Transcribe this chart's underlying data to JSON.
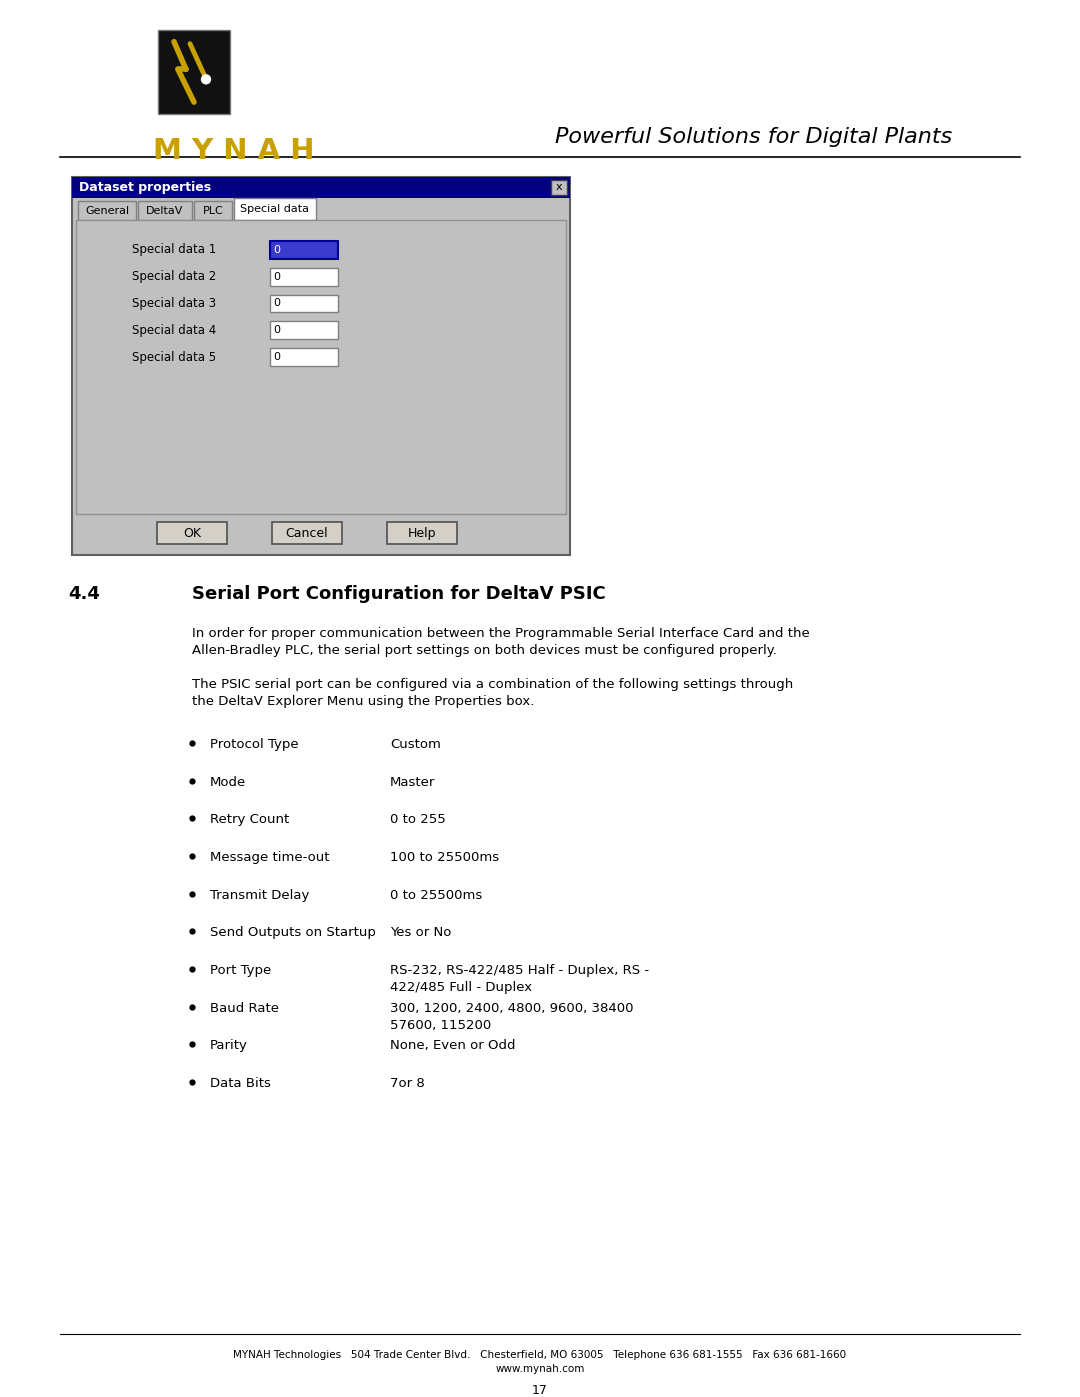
{
  "page_bg": "#ffffff",
  "header_tagline": "Powerful Solutions for Digital Plants",
  "dialog_title": "Dataset properties",
  "dialog_title_bg": "#000080",
  "dialog_title_fg": "#ffffff",
  "dialog_bg": "#c0c0c0",
  "dialog_tabs": [
    "General",
    "DeltaV",
    "PLC",
    "Special data"
  ],
  "dialog_active_tab": "Special data",
  "dialog_fields": [
    "Special data 1",
    "Special data 2",
    "Special data 3",
    "Special data 4",
    "Special data 5"
  ],
  "dialog_values": [
    "0",
    "0",
    "0",
    "0",
    "0"
  ],
  "dialog_buttons": [
    "OK",
    "Cancel",
    "Help"
  ],
  "section_number": "4.4",
  "section_title": "Serial Port Configuration for DeltaV PSIC",
  "para1_line1": "In order for proper communication between the Programmable Serial Interface Card and the",
  "para1_line2": "Allen-Bradley PLC, the serial port settings on both devices must be configured properly.",
  "para2_line1": "The PSIC serial port can be configured via a combination of the following settings through",
  "para2_line2": "the DeltaV Explorer Menu using the Properties box.",
  "bullet_items": [
    {
      "label": "Protocol Type",
      "value": "Custom"
    },
    {
      "label": "Mode",
      "value": "Master"
    },
    {
      "label": "Retry Count",
      "value": "0 to 255"
    },
    {
      "label": "Message time-out",
      "value": "100 to 25500ms"
    },
    {
      "label": "Transmit Delay",
      "value": "0 to 25500ms"
    },
    {
      "label": "Send Outputs on Startup",
      "value": "Yes or No"
    },
    {
      "label": "Port Type",
      "value": "RS-232, RS-422/485 Half - Duplex, RS -",
      "value2": "422/485 Full - Duplex"
    },
    {
      "label": "Baud Rate",
      "value": "300, 1200, 2400, 4800, 9600, 38400",
      "value2": "57600, 115200"
    },
    {
      "label": "Parity",
      "value": "None, Even or Odd"
    },
    {
      "label": "Data Bits",
      "value": "7or 8"
    }
  ],
  "footer_line1": "MYNAH Technologies   504 Trade Center Blvd.   Chesterfield, MO 63005   Telephone 636 681-1555   Fax 636 681-1660",
  "footer_line2": "www.mynah.com",
  "page_number": "17",
  "mynah_letters": "M Y N A H",
  "mynah_color": "#c8a000"
}
